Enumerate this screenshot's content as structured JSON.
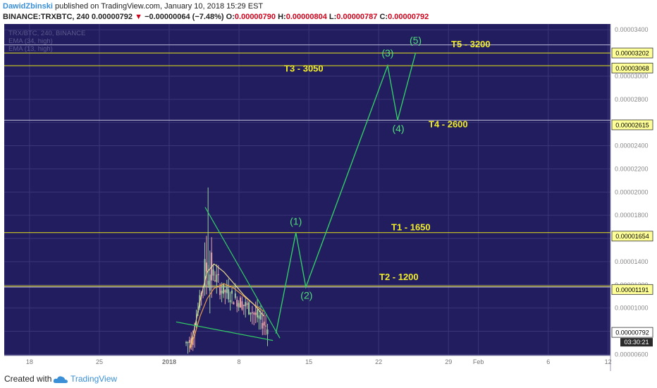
{
  "header": {
    "author": "DawidZbinski",
    "published": "published on TradingView.com, January 10, 2018 15:29 EST",
    "symbol": "BINANCE:TRXBTC, 240",
    "last": "0.00000792",
    "change": "−0.00000064 (−7.48%)",
    "o_label": "O:",
    "o_value": "0.00000790",
    "h_label": "H:",
    "h_value": "0.00000804",
    "l_label": "L:",
    "l_value": "0.00000787",
    "c_label": "C:",
    "c_value": "0.00000792",
    "down_arrow_icon": "triangle-down-icon"
  },
  "legend": [
    "TRX/BTC, 240, BINANCE",
    "EMA (34, high)",
    "EMA (13, high)"
  ],
  "footer": {
    "created_with": "Created with",
    "brand": "TradingView",
    "logo_icon": "tradingview-cloud-icon"
  },
  "colors": {
    "background": "#211d5e",
    "grid": "#3a3678",
    "wave": "#33cc66",
    "target_line": "#e6e21a",
    "label_yellow": "#f0ec2a",
    "label_green": "#4fe07a",
    "price_tag": "#ffff99"
  },
  "chart_data": {
    "type": "candlestick",
    "x_ticks": [
      "18",
      "25",
      "2018",
      "8",
      "15",
      "22",
      "29",
      "Feb",
      "6",
      "12"
    ],
    "y_ticks": [
      "0.00003400",
      "0.00003200",
      "0.00003000",
      "0.00002800",
      "0.00002600",
      "0.00002400",
      "0.00002200",
      "0.00002000",
      "0.00001800",
      "0.00001600",
      "0.00001400",
      "0.00001200",
      "0.00001000",
      "0.00000800",
      "0.00000600"
    ],
    "y_range": [
      5.9e-06,
      3.45e-05
    ],
    "ema_34_high": [
      [
        2.1,
        6.5e-06
      ],
      [
        2.6,
        7.8e-06
      ],
      [
        3.1,
        9.3e-06
      ],
      [
        3.8,
        1.08e-05
      ],
      [
        4.5,
        1.17e-05
      ],
      [
        5.5,
        1.21e-05
      ],
      [
        6.5,
        1.17e-05
      ],
      [
        7.5,
        1.1e-05
      ],
      [
        8.5,
        1.03e-05
      ],
      [
        9.5,
        9.7e-06
      ]
    ],
    "ema_13_high": [
      [
        2.1,
        6.6e-06
      ],
      [
        2.6,
        8.5e-06
      ],
      [
        3.2,
        1.1e-05
      ],
      [
        3.8,
        1.31e-05
      ],
      [
        4.5,
        1.38e-05
      ],
      [
        5.5,
        1.31e-05
      ],
      [
        6.5,
        1.21e-05
      ],
      [
        7.5,
        1.11e-05
      ],
      [
        8.5,
        1.03e-05
      ],
      [
        9.5,
        9.3e-06
      ]
    ],
    "horizontal_levels": [
      {
        "label": "T1 - 1650",
        "tag": "0.00001654"
      },
      {
        "label": "T2 - 1200",
        "tag": "0.00001191"
      },
      {
        "label": "T3 - 3050",
        "tag": "0.00003068"
      },
      {
        "label": "T4 - 2600",
        "tag": "0.00002615"
      },
      {
        "label": "T5 - 3200",
        "tag": "0.00003202"
      }
    ],
    "current_price_tag": "0.00000792",
    "countdown": "03:30:21",
    "wave_path": [
      [
        10.7,
        7.8e-06
      ],
      [
        12.7,
        1.65e-05
      ],
      [
        13.7,
        1.18e-05
      ],
      [
        21.9,
        3.09e-05
      ],
      [
        22.9,
        2.62e-05
      ],
      [
        24.7,
        3.2e-05
      ]
    ],
    "wave_labels": [
      "(1)",
      "(2)",
      "(3)",
      "(4)",
      "(5)"
    ],
    "trendlines": [
      {
        "from": [
          3.6,
          1.87e-05
        ],
        "to": [
          11.1,
          7.4e-06
        ]
      },
      {
        "from": [
          0.7,
          8.8e-06
        ],
        "to": [
          10.4,
          7.2e-06
        ]
      }
    ]
  }
}
